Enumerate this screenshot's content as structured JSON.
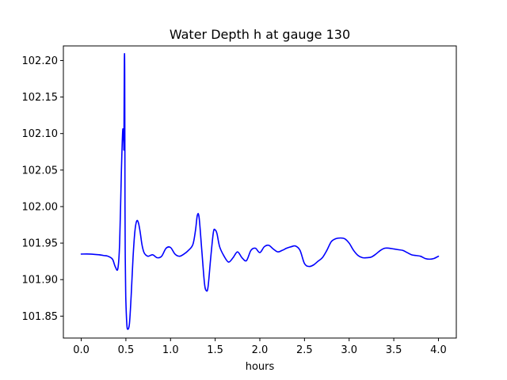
{
  "chart_data": {
    "type": "line",
    "title": "Water Depth h at gauge 130",
    "xlabel": "hours",
    "ylabel": "",
    "xlim": [
      -0.2,
      4.2
    ],
    "ylim": [
      101.82,
      102.22
    ],
    "xticks": [
      0.0,
      0.5,
      1.0,
      1.5,
      2.0,
      2.5,
      3.0,
      3.5,
      4.0
    ],
    "xtick_labels": [
      "0.0",
      "0.5",
      "1.0",
      "1.5",
      "2.0",
      "2.5",
      "3.0",
      "3.5",
      "4.0"
    ],
    "yticks": [
      101.85,
      101.9,
      101.95,
      102.0,
      102.05,
      102.1,
      102.15,
      102.2
    ],
    "ytick_labels": [
      "101.85",
      "101.90",
      "101.95",
      "102.00",
      "102.05",
      "102.10",
      "102.15",
      "102.20"
    ],
    "grid": false,
    "series": [
      {
        "color": "#0000ff",
        "x": [
          0.0,
          0.1,
          0.2,
          0.25,
          0.3,
          0.35,
          0.38,
          0.41,
          0.43,
          0.45,
          0.465,
          0.475,
          0.478,
          0.483,
          0.487,
          0.49,
          0.493,
          0.497,
          0.5,
          0.51,
          0.52,
          0.54,
          0.56,
          0.58,
          0.6,
          0.62,
          0.64,
          0.66,
          0.68,
          0.7,
          0.72,
          0.75,
          0.8,
          0.85,
          0.9,
          0.95,
          1.0,
          1.05,
          1.1,
          1.15,
          1.2,
          1.25,
          1.28,
          1.3,
          1.32,
          1.35,
          1.38,
          1.4,
          1.42,
          1.45,
          1.48,
          1.5,
          1.52,
          1.55,
          1.6,
          1.65,
          1.7,
          1.75,
          1.8,
          1.85,
          1.9,
          1.95,
          2.0,
          2.05,
          2.1,
          2.15,
          2.2,
          2.25,
          2.3,
          2.35,
          2.4,
          2.45,
          2.5,
          2.55,
          2.6,
          2.65,
          2.7,
          2.75,
          2.8,
          2.85,
          2.9,
          2.95,
          3.0,
          3.05,
          3.1,
          3.15,
          3.2,
          3.25,
          3.3,
          3.35,
          3.4,
          3.45,
          3.5,
          3.55,
          3.6,
          3.65,
          3.7,
          3.75,
          3.8,
          3.85,
          3.9,
          3.95,
          4.0
        ],
        "y": [
          101.935,
          101.935,
          101.934,
          101.933,
          101.932,
          101.928,
          101.918,
          101.915,
          101.95,
          102.05,
          102.105,
          102.09,
          102.085,
          102.2,
          102.18,
          102.0,
          101.93,
          101.89,
          101.87,
          101.84,
          101.832,
          101.84,
          101.88,
          101.93,
          101.965,
          101.98,
          101.978,
          101.965,
          101.948,
          101.938,
          101.934,
          101.932,
          101.934,
          101.93,
          101.932,
          101.943,
          101.944,
          101.935,
          101.932,
          101.935,
          101.94,
          101.948,
          101.968,
          101.988,
          101.985,
          101.94,
          101.895,
          101.885,
          101.89,
          101.93,
          101.965,
          101.968,
          101.963,
          101.945,
          101.932,
          101.924,
          101.93,
          101.938,
          101.93,
          101.926,
          101.94,
          101.943,
          101.937,
          101.945,
          101.947,
          101.942,
          101.938,
          101.94,
          101.943,
          101.945,
          101.946,
          101.94,
          101.922,
          101.918,
          101.92,
          101.925,
          101.93,
          101.94,
          101.952,
          101.956,
          101.957,
          101.956,
          101.95,
          101.94,
          101.933,
          101.93,
          101.93,
          101.931,
          101.935,
          101.94,
          101.943,
          101.943,
          101.942,
          101.941,
          101.94,
          101.937,
          101.934,
          101.933,
          101.932,
          101.929,
          101.928,
          101.929,
          101.932
        ]
      }
    ]
  }
}
